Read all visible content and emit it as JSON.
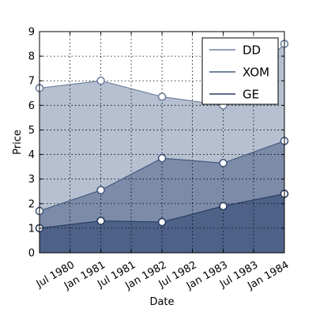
{
  "chart_data": {
    "type": "area",
    "stacked": false,
    "xlabel": "Date",
    "ylabel": "Price",
    "xlim": [
      "1980-01-01",
      "1984-01-01"
    ],
    "ylim": [
      0,
      9
    ],
    "grid": true,
    "legend_position": "top-right",
    "x": [
      "1980-01-01",
      "1981-01-01",
      "1982-01-01",
      "1983-01-01",
      "1984-01-01"
    ],
    "x_ticks": [
      {
        "date": "1980-07-01",
        "label": "Jul 1980"
      },
      {
        "date": "1981-01-01",
        "label": "Jan 1981"
      },
      {
        "date": "1981-07-01",
        "label": "Jul 1981"
      },
      {
        "date": "1982-01-01",
        "label": "Jan 1982"
      },
      {
        "date": "1982-07-01",
        "label": "Jul 1982"
      },
      {
        "date": "1983-01-01",
        "label": "Jan 1983"
      },
      {
        "date": "1983-07-01",
        "label": "Jul 1983"
      },
      {
        "date": "1984-01-01",
        "label": "Jan 1984"
      }
    ],
    "y_ticks": [
      0,
      1,
      2,
      3,
      4,
      5,
      6,
      7,
      8,
      9
    ],
    "series": [
      {
        "name": "DD",
        "values": [
          6.7,
          7.0,
          6.35,
          6.0,
          8.5
        ],
        "fill": "#b6c0d0",
        "line": "#6f819f"
      },
      {
        "name": "XOM",
        "values": [
          1.7,
          2.55,
          3.85,
          3.65,
          4.55
        ],
        "fill": "#7c8ba8",
        "line": "#475a7f"
      },
      {
        "name": "GE",
        "values": [
          1.0,
          1.3,
          1.25,
          1.9,
          2.4
        ],
        "fill": "#4e6288",
        "line": "#2b3d60"
      }
    ]
  }
}
